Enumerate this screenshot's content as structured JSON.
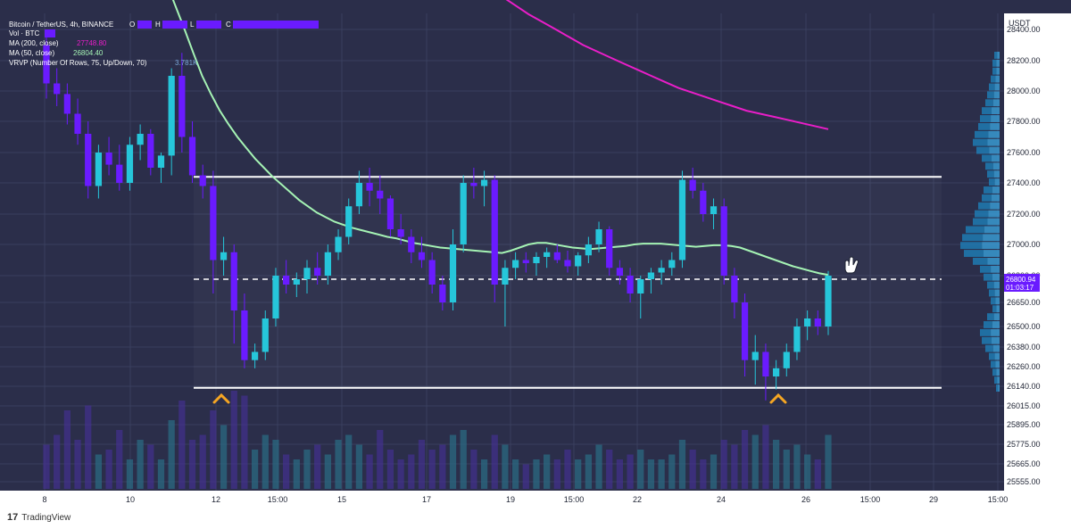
{
  "legend": {
    "symbol_line": "Bitcoin / TetherUS, 4h, BINANCE",
    "ohlc_labels": [
      "O",
      "H",
      "L",
      "C"
    ],
    "vol_label": "Vol · BTC",
    "ma200_label": "MA (200, close)",
    "ma200_value": "27748.80",
    "ma50_label": "MA (50, close)",
    "ma50_value": "26804.40",
    "vrvp_label": "VRVP (Number Of Rows, 75, Up/Down, 70)",
    "vrvp_value": "3.781K"
  },
  "price_axis": {
    "currency": "USDT",
    "current_price": "26800.94",
    "countdown": "01:03:17"
  },
  "footer": {
    "brand": "TradingView"
  },
  "colors": {
    "background": "#2b2e4a",
    "bull_candle": "#26c6da",
    "bear_candle": "#6a1bff",
    "ma200": "#e91ec8",
    "ma50": "#a5f3b4",
    "levels": "#ffffff",
    "markers": "#f5a623",
    "vrvp_up": "#1e7fb8",
    "vrvp_down": "#3aa0d8"
  },
  "chart_data": {
    "type": "candlestick",
    "interval": "4h",
    "y_ticks": [
      "28400.00",
      "28200.00",
      "28000.00",
      "27800.00",
      "27600.00",
      "27400.00",
      "27200.00",
      "27000.00",
      "26800.00",
      "26650.00",
      "26500.00",
      "26380.00",
      "26260.00",
      "26140.00",
      "26015.00",
      "25895.00",
      "25775.00",
      "25665.00",
      "25555.00"
    ],
    "x_ticks": [
      "8",
      "10",
      "12",
      "15:00",
      "15",
      "17",
      "19",
      "15:00",
      "22",
      "24",
      "26",
      "15:00",
      "29",
      "15:00"
    ],
    "levels": {
      "resistance": 27440,
      "mid": 26780,
      "support": 26130
    },
    "candles": [
      [
        28300,
        28400,
        27950,
        28050
      ],
      [
        28050,
        28150,
        27900,
        27980
      ],
      [
        27980,
        28050,
        27780,
        27850
      ],
      [
        27850,
        27950,
        27650,
        27720
      ],
      [
        27720,
        27800,
        27300,
        27380
      ],
      [
        27380,
        27650,
        27300,
        27600
      ],
      [
        27600,
        27700,
        27450,
        27520
      ],
      [
        27520,
        27650,
        27350,
        27400
      ],
      [
        27400,
        27700,
        27350,
        27650
      ],
      [
        27650,
        27780,
        27550,
        27720
      ],
      [
        27720,
        27750,
        27450,
        27500
      ],
      [
        27500,
        27600,
        27400,
        27580
      ],
      [
        27580,
        28150,
        27450,
        28100
      ],
      [
        28100,
        28250,
        27600,
        27700
      ],
      [
        27700,
        27800,
        27400,
        27450
      ],
      [
        27450,
        27520,
        27300,
        27380
      ],
      [
        27380,
        27480,
        26700,
        26900
      ],
      [
        26900,
        27050,
        26800,
        26950
      ],
      [
        26950,
        27000,
        26400,
        26600
      ],
      [
        26600,
        26700,
        26250,
        26300
      ],
      [
        26300,
        26400,
        26250,
        26350
      ],
      [
        26350,
        26600,
        26300,
        26550
      ],
      [
        26550,
        26850,
        26500,
        26800
      ],
      [
        26800,
        26900,
        26700,
        26750
      ],
      [
        26750,
        26820,
        26680,
        26780
      ],
      [
        26780,
        26900,
        26700,
        26850
      ],
      [
        26850,
        26950,
        26750,
        26800
      ],
      [
        26800,
        27000,
        26750,
        26950
      ],
      [
        26950,
        27100,
        26900,
        27050
      ],
      [
        27050,
        27300,
        27000,
        27250
      ],
      [
        27250,
        27480,
        27200,
        27400
      ],
      [
        27400,
        27500,
        27250,
        27350
      ],
      [
        27350,
        27450,
        27200,
        27300
      ],
      [
        27300,
        27320,
        27050,
        27100
      ],
      [
        27100,
        27200,
        27000,
        27050
      ],
      [
        27050,
        27100,
        26880,
        26950
      ],
      [
        26950,
        27050,
        26850,
        26900
      ],
      [
        26900,
        26950,
        26700,
        26750
      ],
      [
        26750,
        26800,
        26600,
        26650
      ],
      [
        26650,
        27100,
        26600,
        27000
      ],
      [
        27000,
        27450,
        26950,
        27400
      ],
      [
        27400,
        27500,
        27300,
        27380
      ],
      [
        27380,
        27480,
        27250,
        27420
      ],
      [
        27420,
        27450,
        26650,
        26750
      ],
      [
        26750,
        26900,
        26500,
        26850
      ],
      [
        26850,
        26950,
        26780,
        26900
      ],
      [
        26900,
        26950,
        26820,
        26880
      ],
      [
        26880,
        26950,
        26800,
        26920
      ],
      [
        26920,
        26980,
        26850,
        26950
      ],
      [
        26950,
        27000,
        26880,
        26900
      ],
      [
        26900,
        26960,
        26820,
        26860
      ],
      [
        26860,
        26950,
        26800,
        26930
      ],
      [
        26930,
        27050,
        26880,
        27000
      ],
      [
        27000,
        27150,
        26950,
        27100
      ],
      [
        27100,
        27120,
        26800,
        26850
      ],
      [
        26850,
        26900,
        26750,
        26800
      ],
      [
        26800,
        26850,
        26650,
        26700
      ],
      [
        26700,
        26800,
        26550,
        26780
      ],
      [
        26780,
        26850,
        26700,
        26820
      ],
      [
        26820,
        26900,
        26750,
        26850
      ],
      [
        26850,
        26950,
        26800,
        26900
      ],
      [
        26900,
        27480,
        26850,
        27420
      ],
      [
        27420,
        27500,
        27300,
        27350
      ],
      [
        27350,
        27400,
        27150,
        27200
      ],
      [
        27200,
        27300,
        27100,
        27250
      ],
      [
        27250,
        27300,
        26750,
        26800
      ],
      [
        26800,
        26850,
        26550,
        26650
      ],
      [
        26650,
        26700,
        26200,
        26300
      ],
      [
        26300,
        26450,
        26150,
        26350
      ],
      [
        26350,
        26400,
        26050,
        26200
      ],
      [
        26200,
        26300,
        26120,
        26250
      ],
      [
        26250,
        26400,
        26200,
        26350
      ],
      [
        26350,
        26550,
        26300,
        26500
      ],
      [
        26500,
        26600,
        26420,
        26550
      ],
      [
        26550,
        26600,
        26450,
        26500
      ],
      [
        26500,
        26830,
        26450,
        26800
      ]
    ],
    "volume_bars": [
      0.45,
      0.55,
      0.8,
      0.5,
      0.85,
      0.35,
      0.4,
      0.6,
      0.3,
      0.5,
      0.45,
      0.3,
      0.7,
      0.9,
      0.5,
      0.55,
      0.8,
      0.65,
      1.0,
      0.95,
      0.4,
      0.55,
      0.5,
      0.35,
      0.3,
      0.4,
      0.45,
      0.35,
      0.5,
      0.55,
      0.45,
      0.35,
      0.6,
      0.4,
      0.3,
      0.35,
      0.5,
      0.4,
      0.45,
      0.55,
      0.6,
      0.4,
      0.3,
      0.55,
      0.45,
      0.3,
      0.25,
      0.3,
      0.35,
      0.3,
      0.4,
      0.3,
      0.35,
      0.45,
      0.4,
      0.3,
      0.35,
      0.4,
      0.3,
      0.3,
      0.35,
      0.5,
      0.4,
      0.3,
      0.35,
      0.5,
      0.45,
      0.6,
      0.55,
      0.65,
      0.5,
      0.4,
      0.45,
      0.35,
      0.3,
      0.55
    ],
    "ma50": [
      28700,
      28550,
      28400,
      28250,
      28100,
      27980,
      27870,
      27780,
      27700,
      27630,
      27560,
      27500,
      27440,
      27390,
      27340,
      27290,
      27250,
      27210,
      27180,
      27150,
      27130,
      27110,
      27095,
      27080,
      27065,
      27050,
      27040,
      27025,
      27010,
      27000,
      26990,
      26980,
      26975,
      26970,
      26965,
      26960,
      26955,
      26950,
      26945,
      26960,
      26980,
      27000,
      27010,
      27010,
      27000,
      26990,
      26980,
      26975,
      26970,
      26975,
      26980,
      26985,
      26990,
      27000,
      27005,
      27005,
      27005,
      27000,
      26995,
      26990,
      26985,
      26990,
      26995,
      26995,
      26990,
      26980,
      26960,
      26940,
      26920,
      26900,
      26880,
      26860,
      26845,
      26830,
      26815,
      26805
    ],
    "ma200": [
      29200,
      29100,
      29000,
      28920,
      28840,
      28760,
      28690,
      28620,
      28560,
      28500,
      28450,
      28400,
      28350,
      28300,
      28260,
      28220,
      28180,
      28140,
      28100,
      28060,
      28020,
      27990,
      27960,
      27930,
      27900,
      27870,
      27850,
      27830,
      27810,
      27790,
      27770,
      27750
    ]
  }
}
